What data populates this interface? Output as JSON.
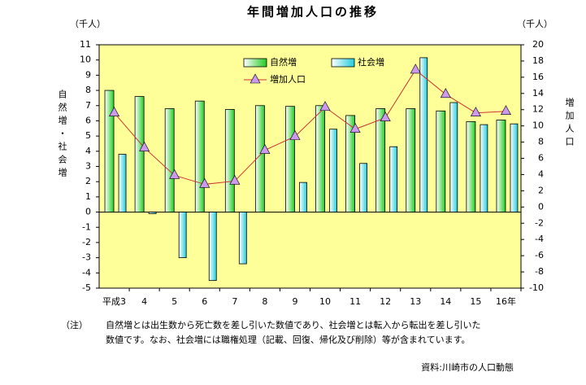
{
  "chart_data": {
    "type": "bar-line",
    "title": "年間増加人口の推移",
    "y_unit": "（千人）",
    "y2_unit": "（千人）",
    "ylabel": "自然増・社会増",
    "y2label": "増加人口",
    "categories": [
      "平成3",
      "4",
      "5",
      "6",
      "7",
      "8",
      "9",
      "10",
      "11",
      "12",
      "13",
      "14",
      "15",
      "16年"
    ],
    "series": [
      {
        "name": "自然増",
        "type": "bar",
        "color": "#22cc22",
        "values": [
          8.0,
          7.6,
          6.8,
          7.3,
          6.75,
          7.0,
          6.95,
          7.0,
          6.35,
          6.8,
          6.8,
          6.65,
          5.95,
          6.05
        ]
      },
      {
        "name": "社会増",
        "type": "bar",
        "color": "#22ccdd",
        "values": [
          3.8,
          -0.1,
          -3.0,
          -4.5,
          -3.4,
          0,
          1.95,
          5.45,
          3.2,
          4.3,
          10.15,
          7.2,
          5.75,
          5.8
        ]
      },
      {
        "name": "増加人口",
        "type": "line",
        "axis": "y2",
        "color": "#cc3333",
        "marker_color": "#cc99ee",
        "values": [
          11.6,
          7.3,
          3.9,
          2.8,
          3.2,
          7.0,
          8.7,
          12.3,
          9.6,
          11.0,
          16.9,
          13.9,
          11.6,
          11.8
        ]
      }
    ],
    "ylim": [
      -5,
      11
    ],
    "yticks": [
      -5,
      -4,
      -3,
      -2,
      -1,
      0,
      1,
      2,
      3,
      4,
      5,
      6,
      7,
      8,
      9,
      10,
      11
    ],
    "y2lim": [
      -10,
      20
    ],
    "y2ticks": [
      -10,
      -8,
      -6,
      -4,
      -2,
      0,
      2,
      4,
      6,
      8,
      10,
      12,
      14,
      16,
      18,
      20
    ],
    "background": "#ffff99",
    "note_label": "（注）",
    "note_lines": [
      "自然増とは出生数から死亡数を差し引いた数値であり、社会増とは転入から転出を差し引いた",
      "数値です。なお、社会増には職権処理（記載、回復、帰化及び削除）等が含まれています。"
    ],
    "source": "資料:川崎市の人口動態"
  }
}
